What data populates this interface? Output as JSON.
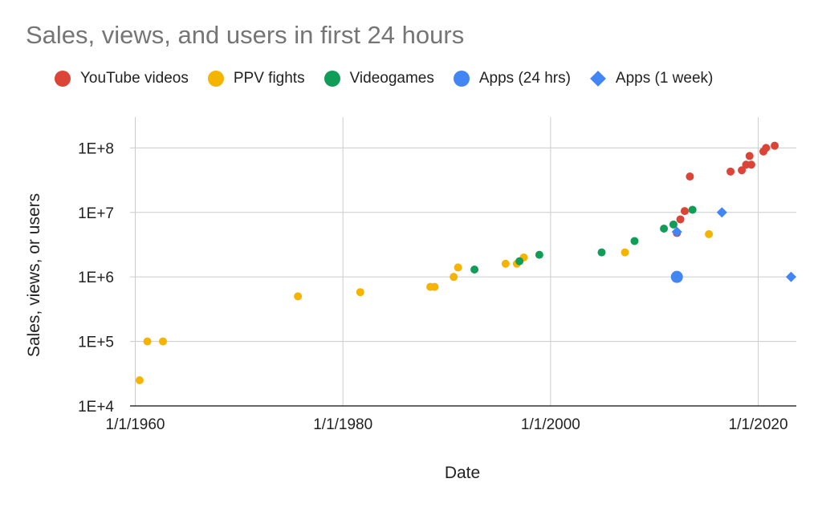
{
  "chart_data": {
    "type": "scatter",
    "title": "Sales, views, and users in first 24 hours",
    "xlabel": "Date",
    "ylabel": "Sales, views, or users",
    "x_scale": "date",
    "y_scale": "log",
    "xlim": [
      "1959-07-01",
      "2023-09-01"
    ],
    "ylim": [
      10000,
      300000000
    ],
    "x_ticks": [
      "1/1/1960",
      "1/1/1980",
      "1/1/2000",
      "1/1/2020"
    ],
    "y_ticks": [
      "1E+4",
      "1E+5",
      "1E+6",
      "1E+7",
      "1E+8"
    ],
    "y_tick_values": [
      10000,
      100000,
      1000000,
      10000000,
      100000000
    ],
    "grid": true,
    "legend_position": "top",
    "series": [
      {
        "name": "YouTube videos",
        "color": "#db4437",
        "marker": "circle",
        "points": [
          {
            "x": "2012-03-01",
            "y": 4800000
          },
          {
            "x": "2012-07-01",
            "y": 7800000
          },
          {
            "x": "2012-12-01",
            "y": 10500000
          },
          {
            "x": "2013-06-01",
            "y": 36000000
          },
          {
            "x": "2017-05-01",
            "y": 43000000
          },
          {
            "x": "2018-06-01",
            "y": 45000000
          },
          {
            "x": "2018-11-01",
            "y": 55000000
          },
          {
            "x": "2019-05-01",
            "y": 55000000
          },
          {
            "x": "2019-03-01",
            "y": 75000000
          },
          {
            "x": "2020-07-01",
            "y": 88000000
          },
          {
            "x": "2020-10-01",
            "y": 100000000
          },
          {
            "x": "2021-08-01",
            "y": 108000000
          }
        ]
      },
      {
        "name": "PPV fights",
        "color": "#f4b400",
        "marker": "circle",
        "points": [
          {
            "x": "1960-06-01",
            "y": 25000
          },
          {
            "x": "1961-03-01",
            "y": 100000
          },
          {
            "x": "1962-09-01",
            "y": 100000
          },
          {
            "x": "1975-09-01",
            "y": 500000
          },
          {
            "x": "1981-09-01",
            "y": 580000
          },
          {
            "x": "1988-06-01",
            "y": 700000
          },
          {
            "x": "1988-11-01",
            "y": 700000
          },
          {
            "x": "1990-09-01",
            "y": 1000000
          },
          {
            "x": "1991-02-01",
            "y": 1400000
          },
          {
            "x": "1995-09-01",
            "y": 1600000
          },
          {
            "x": "1996-10-01",
            "y": 1600000
          },
          {
            "x": "1997-06-01",
            "y": 2000000
          },
          {
            "x": "2007-03-01",
            "y": 2400000
          },
          {
            "x": "2015-04-01",
            "y": 4600000
          }
        ]
      },
      {
        "name": "Videogames",
        "color": "#0f9d58",
        "marker": "circle",
        "points": [
          {
            "x": "1992-09-01",
            "y": 1300000
          },
          {
            "x": "1997-01-01",
            "y": 1750000
          },
          {
            "x": "1998-12-01",
            "y": 2200000
          },
          {
            "x": "2004-12-01",
            "y": 2400000
          },
          {
            "x": "2008-02-01",
            "y": 3600000
          },
          {
            "x": "2010-12-01",
            "y": 5600000
          },
          {
            "x": "2011-11-01",
            "y": 6500000
          },
          {
            "x": "2013-09-01",
            "y": 11000000
          }
        ]
      },
      {
        "name": "Apps (24 hrs)",
        "color": "#4285f4",
        "marker": "circle",
        "points": [
          {
            "x": "2012-03-01",
            "y": 1000000
          }
        ]
      },
      {
        "name": "Apps (1 week)",
        "color": "#4285f4",
        "marker": "diamond",
        "points": [
          {
            "x": "2012-03-01",
            "y": 5000000
          },
          {
            "x": "2016-07-01",
            "y": 10000000
          },
          {
            "x": "2023-03-01",
            "y": 1000000
          }
        ]
      }
    ]
  }
}
